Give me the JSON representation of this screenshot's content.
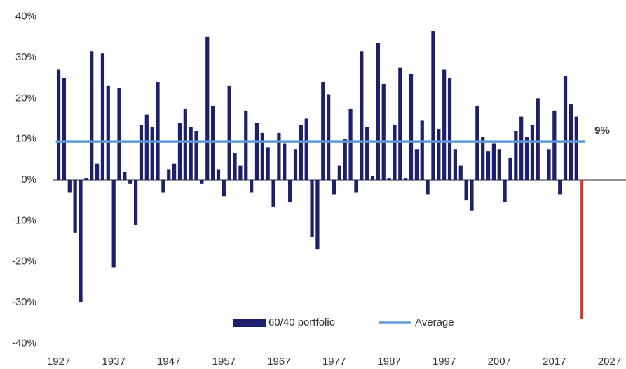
{
  "chart_data": {
    "type": "bar",
    "x": [
      1927,
      1928,
      1929,
      1930,
      1931,
      1932,
      1933,
      1934,
      1935,
      1936,
      1937,
      1938,
      1939,
      1940,
      1941,
      1942,
      1943,
      1944,
      1945,
      1946,
      1947,
      1948,
      1949,
      1950,
      1951,
      1952,
      1953,
      1954,
      1955,
      1956,
      1957,
      1958,
      1959,
      1960,
      1961,
      1962,
      1963,
      1964,
      1965,
      1966,
      1967,
      1968,
      1969,
      1970,
      1971,
      1972,
      1973,
      1974,
      1975,
      1976,
      1977,
      1978,
      1979,
      1980,
      1981,
      1982,
      1983,
      1984,
      1985,
      1986,
      1987,
      1988,
      1989,
      1990,
      1991,
      1992,
      1993,
      1994,
      1995,
      1996,
      1997,
      1998,
      1999,
      2000,
      2001,
      2002,
      2003,
      2004,
      2005,
      2006,
      2007,
      2008,
      2009,
      2010,
      2011,
      2012,
      2013,
      2014,
      2015,
      2016,
      2017,
      2018,
      2019,
      2020,
      2021,
      2022
    ],
    "series": [
      {
        "name": "60/40 portfolio",
        "color": "#1c1f6b",
        "values": [
          27,
          25,
          -3,
          -13,
          -30,
          0.5,
          31.5,
          4,
          31,
          23,
          -21.5,
          22.5,
          2,
          -1,
          -11,
          13.5,
          16,
          13,
          24,
          -3,
          2.5,
          4,
          14,
          17.5,
          13,
          12,
          -1,
          35,
          18,
          2.5,
          -4,
          23,
          6.5,
          3.5,
          17,
          -3,
          14,
          11.5,
          8,
          -6.5,
          11.5,
          9,
          -5.5,
          7.5,
          13.5,
          15,
          -14,
          -17,
          24,
          21,
          -3.5,
          3.5,
          10,
          17.5,
          -3,
          31.5,
          13,
          1,
          33.5,
          23.5,
          0.5,
          13.5,
          27.5,
          0.5,
          26,
          7.5,
          14.5,
          -3.5,
          36.5,
          12.5,
          27,
          25,
          7.5,
          3.5,
          -5,
          -7.5,
          18,
          10.5,
          7,
          9,
          7.5,
          -5.5,
          5.5,
          12,
          15.5,
          10.5,
          13.5,
          20,
          0,
          7.5,
          17,
          -3.5,
          25.5,
          18.5,
          15.5,
          -34
        ]
      },
      {
        "name": "Average",
        "color": "#5b9bd5",
        "type": "line",
        "value": 9.4,
        "value_label": "9%"
      }
    ],
    "highlight_x": 2022,
    "highlight_color": "#d9302c",
    "xlim": [
      1924,
      2030
    ],
    "xticks": [
      1927,
      1937,
      1947,
      1957,
      1967,
      1977,
      1987,
      1997,
      2007,
      2017,
      2027
    ],
    "ylim": [
      -42,
      42
    ],
    "yticks": [
      {
        "value": -40,
        "label": "-40%"
      },
      {
        "value": -30,
        "label": "-30%"
      },
      {
        "value": -20,
        "label": "-20%"
      },
      {
        "value": -10,
        "label": "-10%"
      },
      {
        "value": 0,
        "label": "0%"
      },
      {
        "value": 10,
        "label": "10%"
      },
      {
        "value": 20,
        "label": "20%"
      },
      {
        "value": 30,
        "label": "30%"
      },
      {
        "value": 40,
        "label": "40%"
      }
    ],
    "legend": "bottom"
  }
}
